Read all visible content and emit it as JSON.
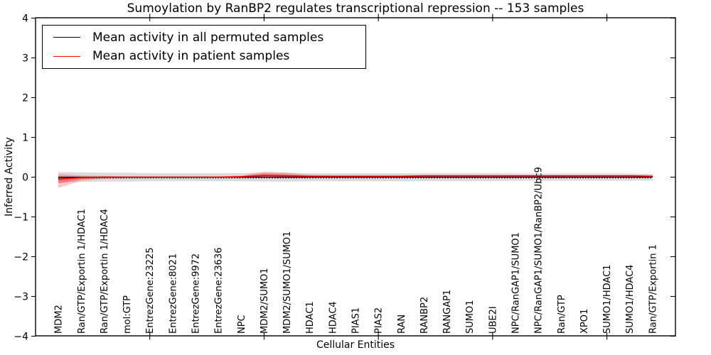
{
  "figure": {
    "title": "Sumoylation by RanBP2 regulates transcriptional repression -- 153 samples",
    "xlabel": "Cellular Entities",
    "ylabel": "Inferred Activity"
  },
  "legend": {
    "items": [
      {
        "label": "Mean activity in all permuted samples",
        "color": "#000000"
      },
      {
        "label": "Mean activity in patient samples",
        "color": "#ff0000"
      }
    ]
  },
  "chart_data": {
    "type": "line",
    "title": "Sumoylation by RanBP2 regulates transcriptional repression -- 153 samples",
    "xlabel": "Cellular Entities",
    "ylabel": "Inferred Activity",
    "ylim": [
      -4,
      4
    ],
    "yticks": [
      -4,
      -3,
      -2,
      -1,
      0,
      1,
      2,
      3,
      4
    ],
    "xticks": [
      5,
      10,
      15,
      20,
      25
    ],
    "grid": false,
    "legend_position": "upper left",
    "categories": [
      "MDM2",
      "Ran/GTP/Exportin 1/HDAC1",
      "Ran/GTP/Exportin 1/HDAC4",
      "mol:GTP",
      "EntrezGene:23225",
      "EntrezGene:8021",
      "EntrezGene:9972",
      "EntrezGene:23636",
      "NPC",
      "MDM2/SUMO1",
      "MDM2/SUMO1/SUMO1",
      "HDAC1",
      "HDAC4",
      "PIAS1",
      "PIAS2",
      "RAN",
      "RANBP2",
      "RANGAP1",
      "SUMO1",
      "UBE2I",
      "NPC/RanGAP1/SUMO1",
      "NPC/RanGAP1/SUMO1/RanBP2/Ubc9",
      "Ran/GTP",
      "XPO1",
      "SUMO1/HDAC1",
      "SUMO1/HDAC4",
      "Ran/GTP/Exportin 1"
    ],
    "series": [
      {
        "name": "Mean activity in all permuted samples",
        "color": "#000000",
        "values": [
          0,
          0,
          0,
          0,
          0,
          0,
          0,
          0,
          0,
          0,
          0,
          0,
          0,
          0,
          0,
          0,
          0,
          0,
          0,
          0,
          0,
          0,
          0,
          0,
          0,
          0,
          0
        ],
        "band_halfwidth": [
          0.13,
          0.12,
          0.11,
          0.11,
          0.1,
          0.1,
          0.1,
          0.1,
          0.1,
          0.11,
          0.11,
          0.1,
          0.1,
          0.1,
          0.1,
          0.1,
          0.1,
          0.1,
          0.1,
          0.1,
          0.09,
          0.09,
          0.09,
          0.09,
          0.09,
          0.09,
          0.08
        ]
      },
      {
        "name": "Mean activity in patient samples",
        "color": "#ff0000",
        "values": [
          -0.05,
          -0.01,
          0,
          0,
          0,
          0,
          0,
          0,
          0.01,
          0.04,
          0.03,
          0.02,
          0.02,
          0.02,
          0.02,
          0.02,
          0.03,
          0.03,
          0.03,
          0.03,
          0.03,
          0.03,
          0.03,
          0.03,
          0.03,
          0.03,
          0.02
        ],
        "band_upper": [
          0.13,
          0.05,
          0.03,
          0.02,
          0.02,
          0.02,
          0.02,
          0.02,
          0.03,
          0.1,
          0.08,
          0.04,
          0.03,
          0.03,
          0.03,
          0.03,
          0.03,
          0.03,
          0.03,
          0.03,
          0.03,
          0.03,
          0.03,
          0.03,
          0.03,
          0.03,
          0.03
        ],
        "band_lower": [
          0.22,
          0.08,
          0.04,
          0.03,
          0.02,
          0.02,
          0.02,
          0.02,
          0.03,
          0.05,
          0.05,
          0.03,
          0.03,
          0.02,
          0.02,
          0.02,
          0.03,
          0.03,
          0.03,
          0.03,
          0.03,
          0.03,
          0.03,
          0.03,
          0.03,
          0.03,
          0.03
        ]
      }
    ]
  }
}
